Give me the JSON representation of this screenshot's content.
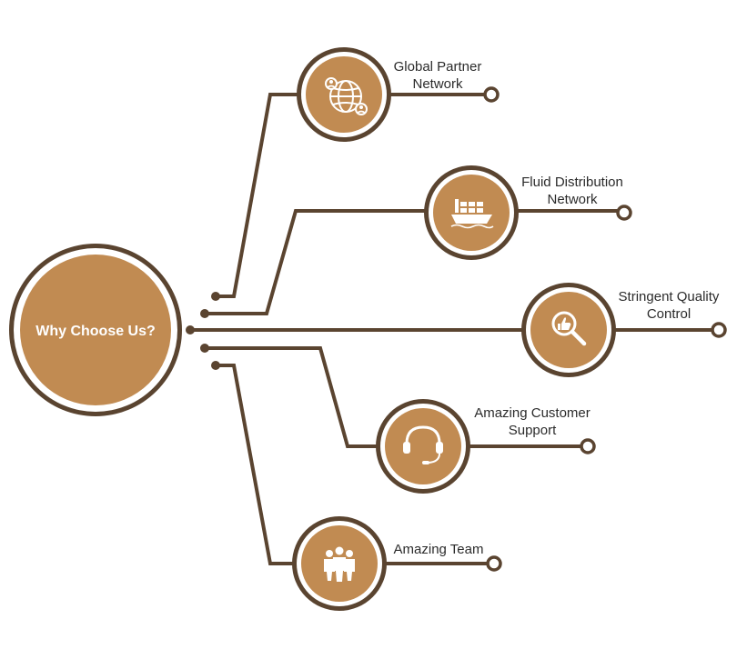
{
  "center": {
    "title": "Why Choose Us?"
  },
  "colors": {
    "line": "#5a4430",
    "fill": "#c18b52",
    "ring_outer": "#5a4430",
    "ring_inner": "#ffffff",
    "icon": "#ffffff"
  },
  "items": [
    {
      "line1": "Global Partner",
      "line2": "Network",
      "icon": "globe-network-icon"
    },
    {
      "line1": "Fluid Distribution",
      "line2": "Network",
      "icon": "cargo-ship-icon"
    },
    {
      "line1": "Stringent Quality",
      "line2": "Control",
      "icon": "magnifier-thumbs-up-icon"
    },
    {
      "line1": "Amazing Customer",
      "line2": "Support",
      "icon": "headset-icon"
    },
    {
      "line1": "Amazing Team",
      "line2": "",
      "icon": "team-icon"
    }
  ]
}
